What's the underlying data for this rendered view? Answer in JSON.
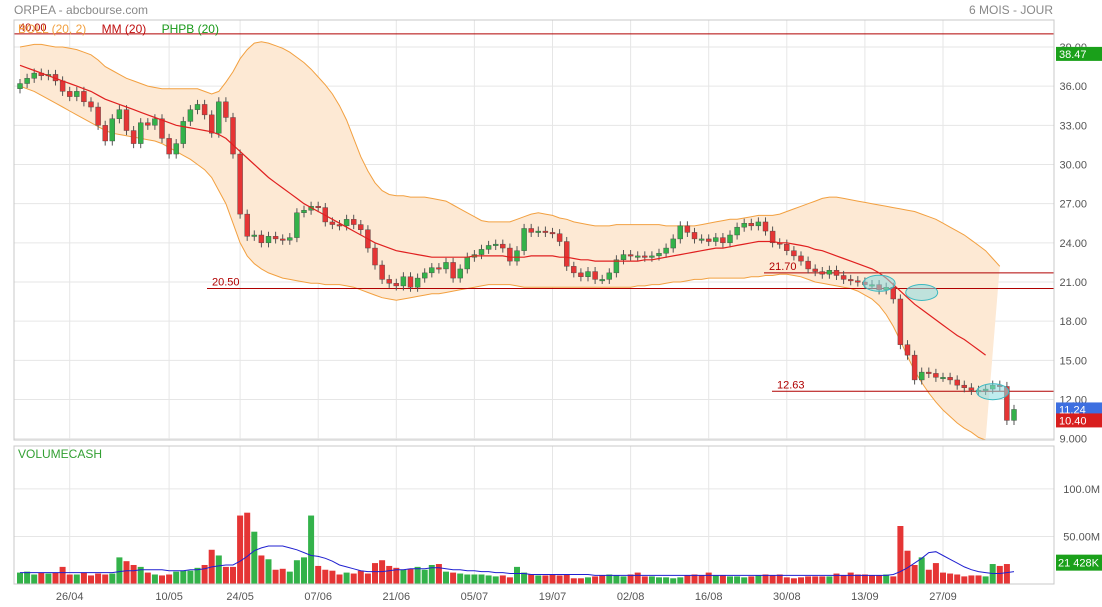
{
  "header": {
    "title": "ORPEA - abcbourse.com",
    "period": "6 MOIS - JOUR"
  },
  "legend": {
    "bollinger": "BOLL (20, 2)",
    "ma": "MM (20)",
    "phpb": "PHPB (20)",
    "volume": "VOLUMECASH"
  },
  "colors": {
    "up": "#33b24a",
    "down": "#e53535",
    "band_fill": "#fde9d4",
    "band_line": "#f2a040",
    "ma_line": "#e02020",
    "volume_avg": "#2020d0",
    "level_line": "#b00000",
    "price_badge_green": "#1aa01a",
    "price_badge_blue": "#3d6fe0",
    "price_badge_red": "#d81e1e"
  },
  "chart_data": [
    {
      "type": "candlestick",
      "title": "",
      "x_ticks": [
        "26/04",
        "10/05",
        "24/05",
        "07/06",
        "21/06",
        "05/07",
        "19/07",
        "02/08",
        "16/08",
        "30/08",
        "13/09",
        "27/09"
      ],
      "y_ticks": [
        "9.000",
        "12.00",
        "15.00",
        "18.00",
        "21.00",
        "24.00",
        "27.00",
        "30.00",
        "33.00",
        "36.00",
        "39.00"
      ],
      "ylim": [
        8.9,
        40.3
      ],
      "levels": [
        {
          "value": 40.0,
          "label": "40.00"
        },
        {
          "value": 20.5,
          "label": "20.50"
        },
        {
          "value": 21.7,
          "label": "21.70"
        },
        {
          "value": 12.63,
          "label": "12.63"
        }
      ],
      "price_tags": [
        {
          "label": "38.47",
          "value": 38.47,
          "kind": "green"
        },
        {
          "label": "11.24",
          "value": 11.24,
          "kind": "blue"
        },
        {
          "label": "10.40",
          "value": 10.4,
          "kind": "red"
        }
      ],
      "close": [
        36.2,
        36.6,
        37.0,
        36.8,
        36.9,
        36.4,
        35.6,
        35.2,
        35.6,
        34.8,
        34.4,
        33.0,
        31.8,
        33.5,
        34.2,
        32.6,
        31.6,
        33.2,
        33.0,
        33.5,
        32.0,
        30.8,
        31.6,
        33.3,
        34.2,
        34.6,
        33.8,
        32.4,
        34.8,
        33.6,
        30.8,
        26.2,
        24.5,
        24.6,
        24.0,
        24.5,
        24.3,
        24.2,
        24.4,
        26.3,
        26.5,
        26.8,
        26.7,
        25.6,
        25.4,
        25.3,
        25.8,
        25.4,
        25.0,
        23.6,
        22.3,
        21.2,
        20.9,
        20.7,
        21.4,
        20.6,
        21.3,
        21.7,
        22.1,
        22.0,
        22.5,
        21.3,
        22.0,
        22.9,
        23.1,
        23.5,
        23.8,
        23.9,
        23.6,
        22.6,
        23.4,
        25.1,
        24.8,
        24.9,
        24.8,
        24.7,
        24.1,
        22.2,
        21.7,
        21.4,
        21.8,
        21.2,
        21.2,
        21.7,
        22.7,
        23.1,
        23.0,
        23.0,
        22.9,
        23.0,
        23.2,
        23.6,
        24.3,
        25.3,
        24.8,
        24.3,
        24.3,
        24.1,
        24.4,
        24.0,
        24.6,
        25.2,
        25.5,
        25.3,
        25.6,
        24.9,
        24.0,
        23.9,
        23.4,
        23.0,
        22.6,
        22.0,
        21.8,
        21.6,
        21.9,
        21.5,
        21.2,
        21.1,
        21.0,
        20.8,
        20.8,
        20.4,
        20.6,
        19.7,
        16.2,
        15.4,
        13.5,
        14.1,
        14.0,
        13.7,
        13.7,
        13.5,
        13.1,
        12.9,
        12.7,
        12.7,
        12.8,
        13.1,
        13.0,
        10.4,
        11.24
      ],
      "series": [
        {
          "name": "MM (20)",
          "values": [
            37.6,
            37.4,
            37.2,
            37.0,
            36.8,
            36.6,
            36.4,
            36.2,
            36.0,
            35.8,
            35.6,
            35.3,
            35.0,
            34.8,
            34.6,
            34.4,
            34.2,
            34.0,
            33.8,
            33.6,
            33.4,
            33.2,
            33.0,
            32.9,
            32.8,
            32.7,
            32.6,
            32.5,
            32.3,
            32.0,
            31.5,
            31.0,
            30.5,
            30.0,
            29.5,
            29.0,
            28.6,
            28.2,
            27.8,
            27.4,
            27.0,
            26.7,
            26.4,
            26.1,
            25.8,
            25.5,
            25.2,
            24.9,
            24.6,
            24.3,
            24.0,
            23.8,
            23.6,
            23.4,
            23.3,
            23.2,
            23.1,
            23.0,
            22.9,
            22.9,
            22.9,
            22.9,
            22.9,
            22.9,
            23.0,
            23.0,
            23.0,
            23.0,
            23.0,
            22.9,
            22.9,
            22.9,
            23.0,
            23.0,
            23.0,
            23.0,
            22.9,
            22.9,
            22.8,
            22.7,
            22.7,
            22.6,
            22.6,
            22.6,
            22.6,
            22.6,
            22.6,
            22.6,
            22.7,
            22.7,
            22.8,
            22.9,
            23.0,
            23.1,
            23.2,
            23.3,
            23.4,
            23.5,
            23.6,
            23.6,
            23.7,
            23.8,
            23.9,
            24.0,
            24.1,
            24.1,
            24.1,
            24.0,
            24.0,
            23.9,
            23.8,
            23.7,
            23.5,
            23.4,
            23.2,
            23.0,
            22.8,
            22.6,
            22.4,
            22.2,
            22.0,
            21.7,
            21.3,
            20.8,
            20.3,
            19.8,
            19.3,
            18.9,
            18.5,
            18.1,
            17.7,
            17.3,
            16.9,
            16.6,
            16.2,
            15.8,
            15.4
          ]
        },
        {
          "name": "BOLL upper",
          "values": [
            39.0,
            39.1,
            39.2,
            39.2,
            39.1,
            39.0,
            39.0,
            38.9,
            38.8,
            38.6,
            38.4,
            38.0,
            37.5,
            37.2,
            36.9,
            36.6,
            36.4,
            36.2,
            36.0,
            35.9,
            35.8,
            35.8,
            35.8,
            35.8,
            35.8,
            35.8,
            35.6,
            35.4,
            35.6,
            36.3,
            37.1,
            38.1,
            38.8,
            39.3,
            39.4,
            39.3,
            39.1,
            38.9,
            38.6,
            38.2,
            37.8,
            37.3,
            36.7,
            36.1,
            35.4,
            34.5,
            33.4,
            32.0,
            30.6,
            29.5,
            28.6,
            28.0,
            27.7,
            27.6,
            27.6,
            27.5,
            27.5,
            27.5,
            27.4,
            27.3,
            27.2,
            26.9,
            26.6,
            26.3,
            26.0,
            25.7,
            25.6,
            25.6,
            25.6,
            25.6,
            25.8,
            26.0,
            26.2,
            26.3,
            26.2,
            26.1,
            25.9,
            25.8,
            25.6,
            25.5,
            25.4,
            25.3,
            25.3,
            25.3,
            25.4,
            25.4,
            25.4,
            25.4,
            25.4,
            25.4,
            25.4,
            25.3,
            25.3,
            25.3,
            25.3,
            25.3,
            25.4,
            25.5,
            25.6,
            25.7,
            25.8,
            25.8,
            25.9,
            26.0,
            26.1,
            26.1,
            26.1,
            26.2,
            26.4,
            26.6,
            26.8,
            27.0,
            27.2,
            27.4,
            27.5,
            27.5,
            27.4,
            27.3,
            27.2,
            27.1,
            27.0,
            26.9,
            26.8,
            26.7,
            26.6,
            26.5,
            26.4,
            26.2,
            26.0,
            25.8,
            25.5,
            25.2,
            24.9,
            24.6,
            24.2,
            23.8,
            23.4,
            22.8,
            22.2
          ]
        },
        {
          "name": "BOLL lower",
          "values": [
            36.0,
            35.8,
            35.6,
            35.3,
            35.0,
            34.7,
            34.4,
            34.1,
            33.8,
            33.5,
            33.2,
            32.9,
            32.6,
            32.4,
            32.3,
            32.2,
            32.1,
            32.0,
            31.9,
            31.8,
            31.6,
            31.3,
            31.0,
            30.7,
            30.4,
            30.0,
            29.6,
            29.0,
            28.0,
            27.0,
            25.5,
            24.0,
            23.0,
            22.4,
            22.0,
            21.7,
            21.5,
            21.3,
            21.2,
            21.1,
            21.0,
            20.9,
            20.9,
            20.8,
            20.8,
            20.8,
            20.7,
            20.6,
            20.4,
            20.2,
            20.0,
            19.8,
            19.7,
            19.6,
            19.7,
            19.8,
            19.9,
            20.0,
            20.1,
            20.1,
            20.2,
            20.3,
            20.4,
            20.5,
            20.6,
            20.7,
            20.8,
            20.8,
            20.8,
            20.8,
            20.7,
            20.6,
            20.6,
            20.6,
            20.6,
            20.6,
            20.6,
            20.6,
            20.6,
            20.6,
            20.6,
            20.6,
            20.6,
            20.6,
            20.6,
            20.6,
            20.6,
            20.7,
            20.7,
            20.8,
            20.8,
            20.9,
            21.0,
            21.0,
            21.1,
            21.2,
            21.2,
            21.3,
            21.3,
            21.3,
            21.3,
            21.3,
            21.3,
            21.4,
            21.4,
            21.5,
            21.5,
            21.6,
            21.6,
            21.5,
            21.4,
            21.2,
            21.0,
            20.9,
            20.8,
            20.7,
            20.6,
            20.5,
            20.3,
            20.0,
            19.7,
            19.2,
            18.5,
            17.6,
            16.5,
            15.3,
            14.2,
            13.3,
            12.5,
            11.8,
            11.2,
            10.7,
            10.2,
            9.8,
            9.5,
            9.1,
            8.9
          ]
        }
      ]
    },
    {
      "type": "bar",
      "title": "VOLUMECASH",
      "y_ticks": [
        "50.00M",
        "100.0M"
      ],
      "ylim": [
        0,
        122
      ],
      "price_tags": [
        {
          "label": "21 428K",
          "kind": "green"
        }
      ],
      "values": [
        12,
        13,
        10,
        12,
        11,
        12,
        18,
        10,
        10,
        12,
        9,
        11,
        10,
        11,
        28,
        24,
        20,
        18,
        12,
        10,
        9,
        10,
        13,
        14,
        14,
        17,
        20,
        36,
        30,
        18,
        18,
        72,
        75,
        55,
        30,
        26,
        15,
        16,
        13,
        25,
        28,
        72,
        19,
        15,
        14,
        10,
        12,
        11,
        14,
        11,
        22,
        25,
        19,
        17,
        15,
        16,
        18,
        15,
        20,
        21,
        13,
        12,
        11,
        10,
        10,
        10,
        9,
        8,
        9,
        7,
        18,
        12,
        10,
        9,
        9,
        10,
        9,
        10,
        6,
        6,
        7,
        8,
        9,
        10,
        9,
        8,
        10,
        12,
        8,
        8,
        7,
        7,
        6,
        7,
        9,
        10,
        9,
        12,
        9,
        9,
        8,
        8,
        7,
        8,
        9,
        10,
        9,
        10,
        7,
        6,
        7,
        8,
        8,
        8,
        8,
        11,
        9,
        12,
        10,
        10,
        9,
        9,
        10,
        8,
        61,
        35,
        20,
        28,
        15,
        22,
        12,
        11,
        10,
        8,
        9,
        9,
        8,
        21,
        19,
        21
      ],
      "up": [
        1,
        1,
        1,
        0,
        1,
        0,
        0,
        0,
        1,
        0,
        0,
        0,
        0,
        1,
        1,
        0,
        0,
        1,
        0,
        1,
        0,
        0,
        1,
        1,
        1,
        1,
        0,
        0,
        1,
        0,
        0,
        0,
        0,
        1,
        0,
        1,
        0,
        0,
        1,
        1,
        1,
        1,
        0,
        0,
        0,
        0,
        1,
        0,
        0,
        0,
        0,
        0,
        0,
        0,
        1,
        0,
        1,
        1,
        1,
        0,
        1,
        0,
        1,
        1,
        1,
        1,
        1,
        1,
        0,
        0,
        1,
        1,
        0,
        1,
        0,
        0,
        0,
        0,
        0,
        0,
        1,
        0,
        0,
        1,
        1,
        1,
        0,
        0,
        0,
        1,
        1,
        1,
        1,
        1,
        0,
        0,
        0,
        0,
        1,
        0,
        1,
        1,
        1,
        0,
        1,
        0,
        0,
        0,
        0,
        0,
        0,
        0,
        0,
        0,
        1,
        0,
        0,
        0,
        0,
        0,
        0,
        0,
        1,
        0,
        0,
        0,
        0,
        1,
        0,
        0,
        0,
        0,
        0,
        0,
        0,
        0,
        1,
        1,
        0,
        0,
        1
      ],
      "series": [
        {
          "name": "volume average",
          "values": [
            12,
            12,
            12,
            12,
            12,
            12,
            12,
            12,
            12,
            12,
            12,
            12,
            12,
            12,
            13,
            14,
            14,
            15,
            15,
            15,
            15,
            14,
            14,
            14,
            15,
            15,
            16,
            18,
            19,
            20,
            20,
            24,
            29,
            35,
            38,
            40,
            40,
            40,
            38,
            36,
            33,
            30,
            29,
            27,
            24,
            20,
            18,
            16,
            14,
            13,
            13,
            13,
            14,
            15,
            15,
            16,
            16,
            16,
            17,
            17,
            16,
            15,
            15,
            14,
            14,
            13,
            13,
            12,
            12,
            11,
            11,
            11,
            10,
            10,
            10,
            10,
            10,
            10,
            10,
            10,
            10,
            9,
            9,
            9,
            9,
            9,
            9,
            9,
            9,
            9,
            9,
            9,
            9,
            9,
            9,
            9,
            9,
            9,
            9,
            9,
            9,
            9,
            9,
            9,
            9,
            9,
            9,
            9,
            9,
            9,
            9,
            9,
            9,
            9,
            9,
            9,
            9,
            9,
            9,
            9,
            9,
            9,
            9,
            10,
            13,
            17,
            22,
            27,
            33,
            34,
            30,
            26,
            22,
            18,
            15,
            13,
            12,
            11,
            11,
            12,
            13
          ]
        }
      ]
    }
  ]
}
